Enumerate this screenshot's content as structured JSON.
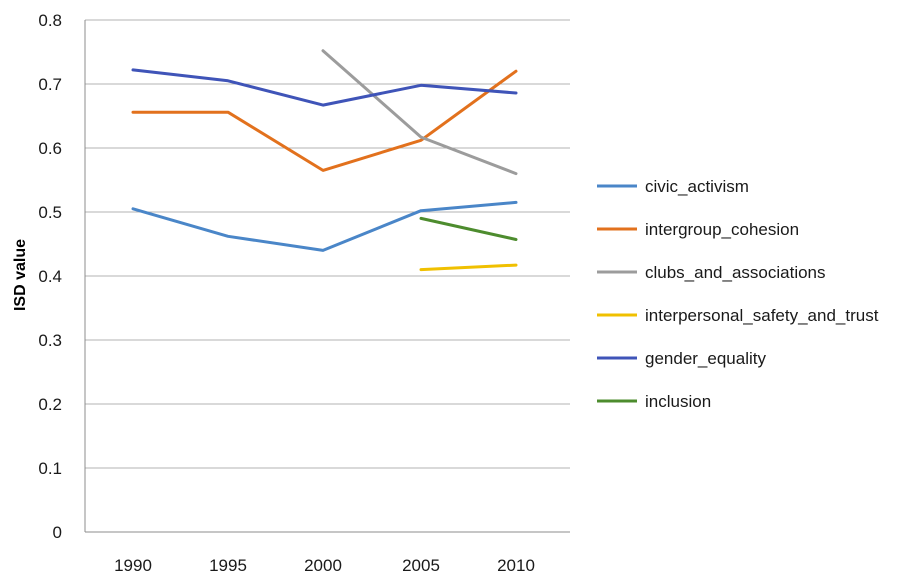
{
  "chart_data": {
    "type": "line",
    "title": "",
    "xlabel": "",
    "ylabel": "ISD value",
    "x": [
      "1990",
      "1995",
      "2000",
      "2005",
      "2010"
    ],
    "ylim": [
      0,
      0.8
    ],
    "yticks": [
      "0",
      "0.1",
      "0.2",
      "0.3",
      "0.4",
      "0.5",
      "0.6",
      "0.7",
      "0.8"
    ],
    "grid": true,
    "legend_position": "right",
    "series": [
      {
        "name": "civic_activism",
        "color": "#4a86c8",
        "values": [
          0.505,
          0.462,
          0.44,
          0.502,
          0.515
        ]
      },
      {
        "name": "intergroup_cohesion",
        "color": "#e2711d",
        "values": [
          0.656,
          0.656,
          0.565,
          0.612,
          0.72
        ]
      },
      {
        "name": "clubs_and_associations",
        "color": "#9c9c9c",
        "values": [
          null,
          null,
          0.752,
          0.617,
          0.56
        ]
      },
      {
        "name": "interpersonal_safety_and_trust",
        "color": "#f0c000",
        "values": [
          null,
          null,
          null,
          0.41,
          0.417
        ]
      },
      {
        "name": "gender_equality",
        "color": "#3f54b8",
        "values": [
          0.722,
          0.705,
          0.667,
          0.698,
          0.686
        ]
      },
      {
        "name": "inclusion",
        "color": "#4d8c2e",
        "values": [
          null,
          null,
          null,
          0.49,
          0.457
        ]
      }
    ]
  }
}
